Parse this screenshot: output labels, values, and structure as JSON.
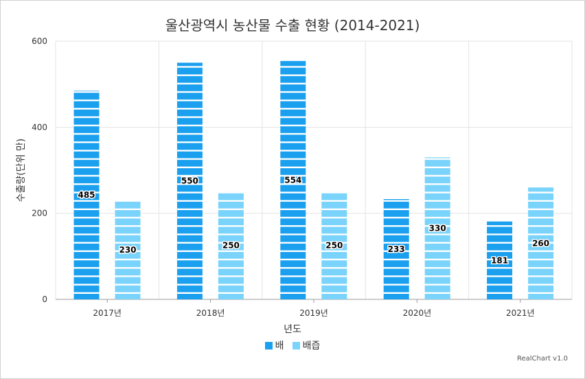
{
  "chart_data": {
    "type": "bar",
    "title": "울산광역시 농산물 수출 현황 (2014-2021)",
    "xlabel": "년도",
    "ylabel": "수출량(단위 만)",
    "categories": [
      "2017년",
      "2018년",
      "2019년",
      "2020년",
      "2021년"
    ],
    "series": [
      {
        "name": "배",
        "values": [
          485,
          550,
          554,
          233,
          181
        ],
        "color": "#1aa0ee"
      },
      {
        "name": "배즙",
        "values": [
          230,
          250,
          250,
          330,
          260
        ],
        "color": "#79d3fa"
      }
    ],
    "ylim": [
      0,
      600
    ],
    "yticks": [
      0,
      200,
      400,
      600
    ],
    "grid": true,
    "legend_position": "bottom"
  },
  "credit": "RealChart v1.0"
}
